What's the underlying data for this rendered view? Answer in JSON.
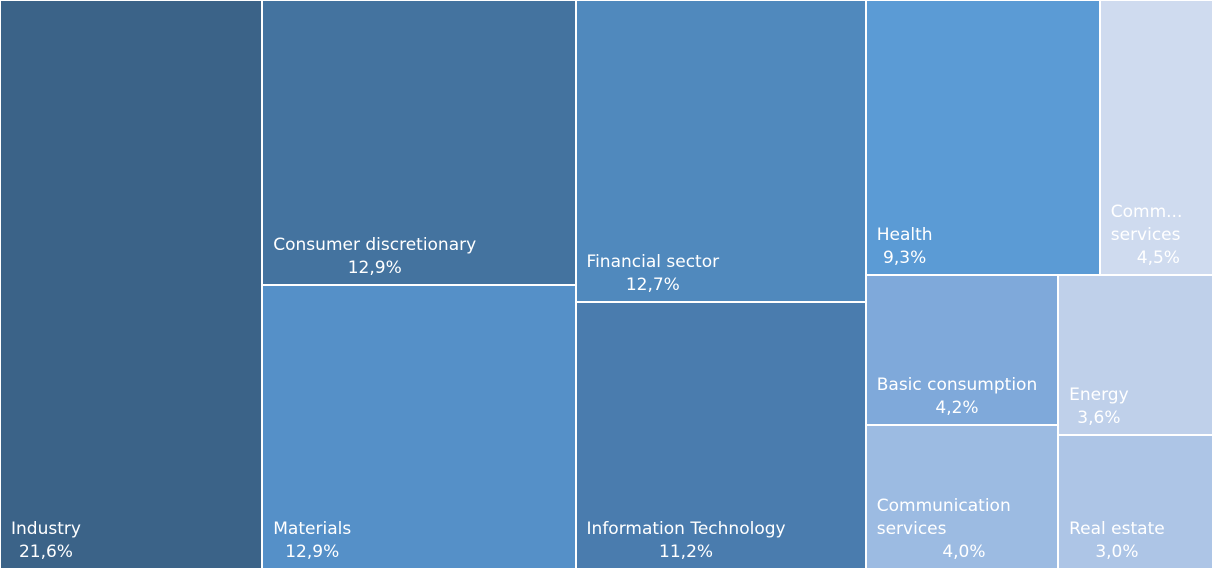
{
  "chart_data": {
    "type": "treemap",
    "categories": [
      "Industry",
      "Consumer discretionary",
      "Materials",
      "Financial sector",
      "Information Technology",
      "Health",
      "Comm... services",
      "Basic consumption",
      "Communication services",
      "Energy",
      "Real estate"
    ],
    "values": [
      21.6,
      12.9,
      12.9,
      12.7,
      11.2,
      9.3,
      4.5,
      4.2,
      4.0,
      3.6,
      3.0
    ],
    "value_labels": [
      "21,6%",
      "12,9%",
      "12,9%",
      "12,7%",
      "11,2%",
      "9,3%",
      "4,5%",
      "4,2%",
      "4,0%",
      "3,6%",
      "3,0%"
    ],
    "colors": [
      "#3b6388",
      "#44739f",
      "#5590c8",
      "#5089bd",
      "#4a7cae",
      "#5b9bd5",
      "#cfdbef",
      "#7fa9da",
      "#9cbbe2",
      "#bfd0ea",
      "#adc5e6"
    ]
  }
}
